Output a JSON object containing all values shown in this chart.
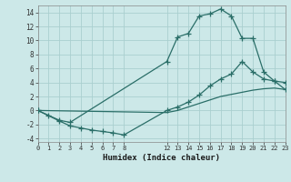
{
  "xlabel": "Humidex (Indice chaleur)",
  "bg_color": "#cce8e8",
  "grid_color": "#aacfcf",
  "line_color": "#2a6e68",
  "xlim": [
    0,
    23
  ],
  "ylim": [
    -4.5,
    15.0
  ],
  "xticks": [
    0,
    1,
    2,
    3,
    4,
    5,
    6,
    7,
    8,
    12,
    13,
    14,
    15,
    16,
    17,
    18,
    19,
    20,
    21,
    22,
    23
  ],
  "yticks": [
    -4,
    -2,
    0,
    2,
    4,
    6,
    8,
    10,
    12,
    14
  ],
  "line1_x": [
    0,
    1,
    2,
    3,
    12,
    13,
    14,
    15,
    16,
    17,
    18,
    19,
    20,
    21,
    22,
    23
  ],
  "line1_y": [
    0.0,
    -0.7,
    -1.4,
    -1.7,
    7.0,
    10.5,
    11.0,
    13.5,
    13.8,
    14.5,
    13.5,
    10.3,
    10.3,
    5.5,
    4.2,
    3.0
  ],
  "line2_x": [
    0,
    2,
    3,
    4,
    5,
    6,
    7,
    8,
    12,
    13,
    14,
    15,
    16,
    17,
    18,
    19,
    20,
    21,
    22,
    23
  ],
  "line2_y": [
    0.0,
    -1.5,
    -2.2,
    -2.5,
    -2.8,
    -3.0,
    -3.2,
    -3.5,
    0.0,
    0.5,
    1.2,
    2.2,
    3.5,
    4.5,
    5.2,
    7.0,
    5.5,
    4.5,
    4.2,
    4.0
  ],
  "line3_x": [
    0,
    12,
    13,
    14,
    15,
    16,
    17,
    18,
    19,
    20,
    21,
    22,
    23
  ],
  "line3_y": [
    0.0,
    -0.3,
    0.0,
    0.5,
    1.0,
    1.5,
    2.0,
    2.3,
    2.6,
    2.9,
    3.1,
    3.2,
    3.0
  ]
}
